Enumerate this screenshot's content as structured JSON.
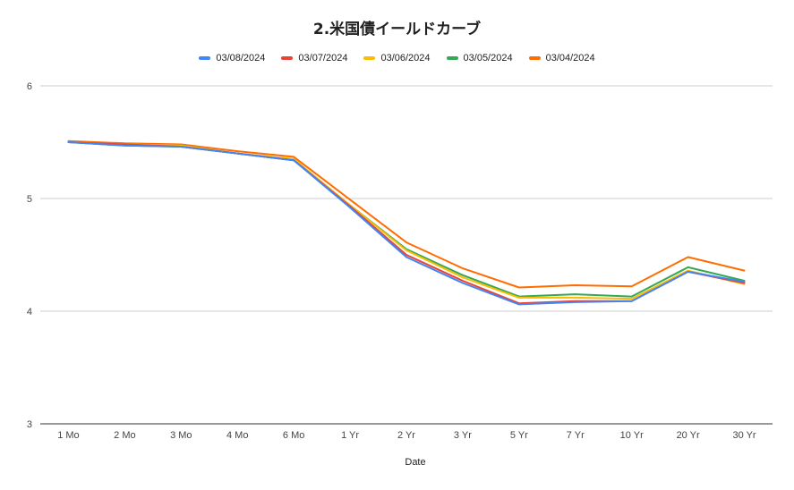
{
  "chart_data": {
    "type": "line",
    "title": "2.米国債イールドカーブ",
    "xlabel": "Date",
    "ylabel": "",
    "ylim": [
      3,
      6
    ],
    "yticks": [
      "3",
      "4",
      "5",
      "6"
    ],
    "grid": true,
    "legend_position": "top-center",
    "categories": [
      "1 Mo",
      "2 Mo",
      "3 Mo",
      "4 Mo",
      "6 Mo",
      "1 Yr",
      "2 Yr",
      "3 Yr",
      "5 Yr",
      "7 Yr",
      "10 Yr",
      "20 Yr",
      "30 Yr"
    ],
    "series": [
      {
        "name": "03/08/2024",
        "color": "#4285f4",
        "values": [
          5.5,
          5.47,
          5.46,
          5.4,
          5.34,
          4.92,
          4.48,
          4.25,
          4.06,
          4.08,
          4.09,
          4.35,
          4.26
        ]
      },
      {
        "name": "03/07/2024",
        "color": "#ea4335",
        "values": [
          5.5,
          5.48,
          5.46,
          5.4,
          5.34,
          4.93,
          4.5,
          4.27,
          4.07,
          4.09,
          4.09,
          4.35,
          4.25
        ]
      },
      {
        "name": "03/06/2024",
        "color": "#fbbc04",
        "values": [
          5.5,
          5.48,
          5.47,
          5.4,
          5.35,
          4.94,
          4.54,
          4.3,
          4.12,
          4.12,
          4.11,
          4.36,
          4.24
        ]
      },
      {
        "name": "03/05/2024",
        "color": "#34a853",
        "values": [
          5.5,
          5.47,
          5.46,
          5.4,
          5.34,
          4.94,
          4.55,
          4.32,
          4.13,
          4.15,
          4.13,
          4.39,
          4.27
        ]
      },
      {
        "name": "03/04/2024",
        "color": "#ff6d01",
        "values": [
          5.51,
          5.49,
          5.48,
          5.42,
          5.37,
          4.99,
          4.61,
          4.38,
          4.21,
          4.23,
          4.22,
          4.48,
          4.36
        ]
      }
    ]
  }
}
